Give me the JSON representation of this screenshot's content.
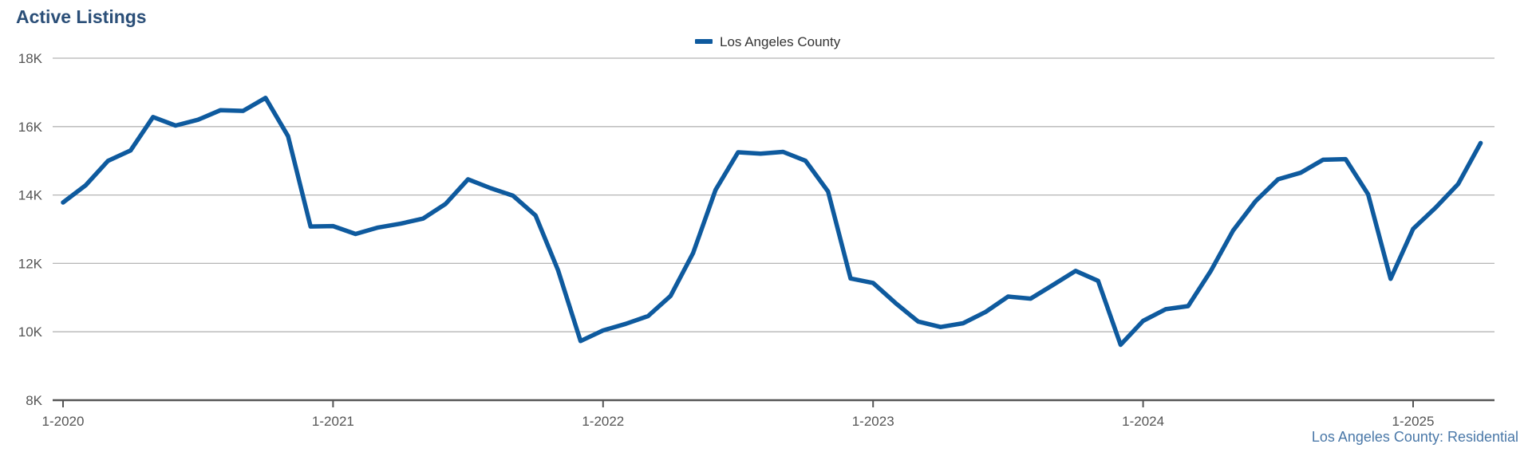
{
  "chart_data": {
    "type": "line",
    "title": "Active Listings",
    "credit": "Los Angeles County: Residential",
    "x": [
      "1-2020",
      "2-2020",
      "3-2020",
      "4-2020",
      "5-2020",
      "6-2020",
      "7-2020",
      "8-2020",
      "9-2020",
      "10-2020",
      "11-2020",
      "12-2020",
      "1-2021",
      "2-2021",
      "3-2021",
      "4-2021",
      "5-2021",
      "6-2021",
      "7-2021",
      "8-2021",
      "9-2021",
      "10-2021",
      "11-2021",
      "12-2021",
      "1-2022",
      "2-2022",
      "3-2022",
      "4-2022",
      "5-2022",
      "6-2022",
      "7-2022",
      "8-2022",
      "9-2022",
      "10-2022",
      "11-2022",
      "12-2022",
      "1-2023",
      "2-2023",
      "3-2023",
      "4-2023",
      "5-2023",
      "6-2023",
      "7-2023",
      "8-2023",
      "9-2023",
      "10-2023",
      "11-2023",
      "12-2023",
      "1-2024",
      "2-2024",
      "3-2024",
      "4-2024",
      "5-2024",
      "6-2024",
      "7-2024",
      "8-2024",
      "9-2024",
      "10-2024",
      "11-2024",
      "12-2024",
      "1-2025",
      "2-2025",
      "3-2025",
      "4-2025"
    ],
    "series": [
      {
        "name": "Los Angeles County",
        "color": "#0e5a9e",
        "values": [
          13780,
          14280,
          15000,
          15300,
          16280,
          16030,
          16200,
          16480,
          16460,
          16840,
          15720,
          13080,
          13090,
          12860,
          13050,
          13160,
          13310,
          13740,
          14460,
          14200,
          13980,
          13400,
          11800,
          9730,
          10040,
          10230,
          10460,
          11050,
          12300,
          14150,
          15250,
          15210,
          15260,
          15000,
          14100,
          11560,
          11430,
          10840,
          10300,
          10140,
          10250,
          10580,
          11030,
          10970,
          11370,
          11780,
          11490,
          9620,
          10320,
          10660,
          10750,
          11770,
          12960,
          13820,
          14460,
          14650,
          15030,
          15050,
          14020,
          11550,
          13010,
          13630,
          14320,
          15520
        ]
      }
    ],
    "x_tick_labels": [
      "1-2020",
      "1-2021",
      "1-2022",
      "1-2023",
      "1-2024",
      "1-2025"
    ],
    "y_tick_labels": [
      "8K",
      "10K",
      "12K",
      "14K",
      "16K",
      "18K"
    ],
    "ylim": [
      8000,
      18000
    ],
    "grid": true,
    "legend": "top-center"
  }
}
